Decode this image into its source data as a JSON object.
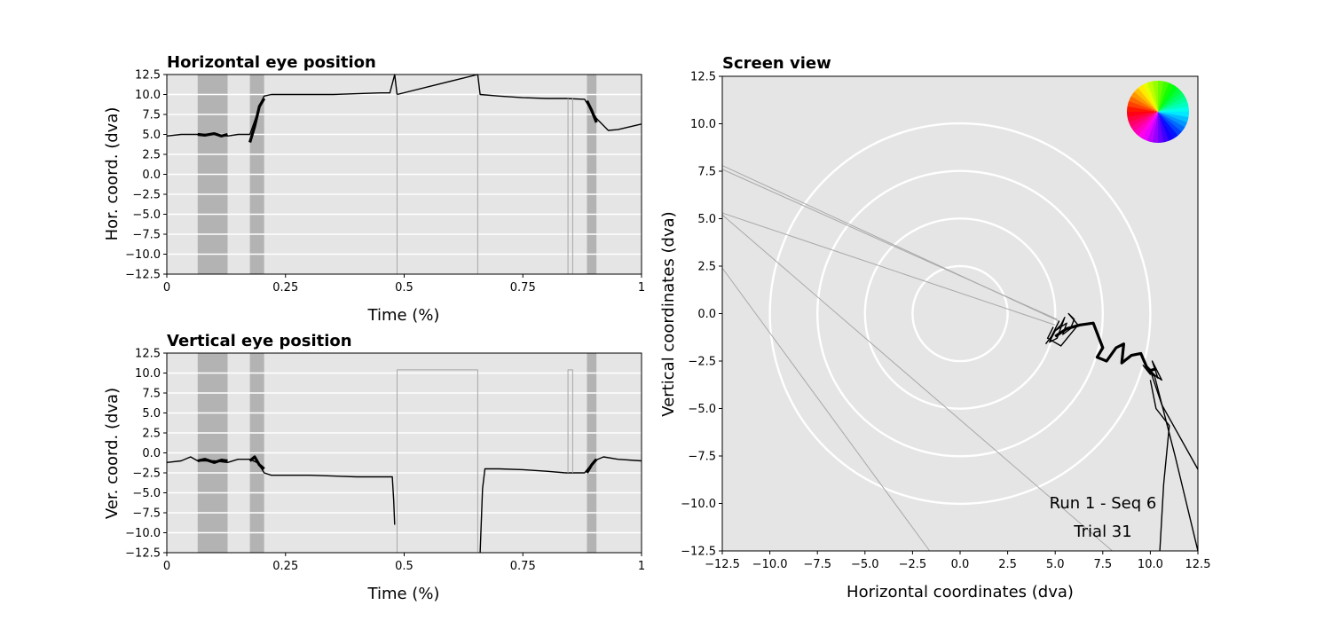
{
  "chart_data": [
    {
      "type": "line",
      "title": "Horizontal eye position",
      "xlabel": "Time (%)",
      "ylabel": "Hor. coord. (dva)",
      "xlim": [
        0,
        1
      ],
      "ylim": [
        -12.5,
        12.5
      ],
      "x_ticks": [
        0,
        0.25,
        0.5,
        0.75,
        1
      ],
      "x_tick_labels": [
        "0",
        "0.25",
        "0.5",
        "0.75",
        "1"
      ],
      "y_ticks": [
        -12.5,
        -10.0,
        -7.5,
        -5.0,
        -2.5,
        0.0,
        2.5,
        5.0,
        7.5,
        10.0,
        12.5
      ],
      "y_tick_labels": [
        "−12.5",
        "−10.0",
        "−7.5",
        "−5.0",
        "−2.5",
        "0.0",
        "2.5",
        "5.0",
        "7.5",
        "10.0",
        "12.5"
      ],
      "grid": "horizontal white",
      "shaded_intervals": [
        [
          0.065,
          0.128
        ],
        [
          0.175,
          0.205
        ],
        [
          0.885,
          0.905
        ]
      ],
      "series": [
        {
          "style": "thin-black",
          "x": [
            0,
            0.03,
            0.065,
            0.1,
            0.128,
            0.15,
            0.175,
            0.19,
            0.2,
            0.205,
            0.22,
            0.3,
            0.35,
            0.4,
            0.45,
            0.47,
            0.48,
            0.485,
            0.655,
            0.66,
            0.7,
            0.75,
            0.8,
            0.84,
            0.88,
            0.905,
            0.93,
            0.95,
            1.0
          ],
          "y": [
            4.8,
            5.0,
            5.0,
            5.0,
            4.8,
            5.0,
            5.0,
            7.5,
            9.2,
            9.8,
            10.0,
            10.0,
            10.0,
            10.1,
            10.2,
            10.2,
            12.5,
            10.0,
            12.5,
            10.0,
            9.8,
            9.6,
            9.5,
            9.5,
            9.4,
            7.0,
            5.5,
            5.6,
            6.3
          ]
        },
        {
          "style": "thick-black",
          "x": [
            0.065,
            0.08,
            0.1,
            0.115,
            0.128
          ],
          "y": [
            5.0,
            4.9,
            5.1,
            4.8,
            5.0
          ]
        },
        {
          "style": "thick-black",
          "x": [
            0.175,
            0.185,
            0.195,
            0.205
          ],
          "y": [
            4.0,
            6.0,
            8.5,
            9.5
          ]
        },
        {
          "style": "thick-black",
          "x": [
            0.885,
            0.895,
            0.905
          ],
          "y": [
            9.2,
            8.0,
            6.5
          ]
        },
        {
          "style": "thin-gray",
          "x": [
            0.485,
            0.485,
            0.655,
            0.655
          ],
          "y": [
            10.0,
            -12.5,
            -12.5,
            10.0
          ]
        },
        {
          "style": "thin-gray",
          "x": [
            0.845,
            0.845,
            0.855,
            0.855
          ],
          "y": [
            9.5,
            -12.5,
            -12.5,
            9.5
          ]
        }
      ]
    },
    {
      "type": "line",
      "title": "Vertical eye position",
      "xlabel": "Time (%)",
      "ylabel": "Ver. coord. (dva)",
      "xlim": [
        0,
        1
      ],
      "ylim": [
        -12.5,
        12.5
      ],
      "x_ticks": [
        0,
        0.25,
        0.5,
        0.75,
        1
      ],
      "x_tick_labels": [
        "0",
        "0.25",
        "0.5",
        "0.75",
        "1"
      ],
      "y_ticks": [
        -12.5,
        -10.0,
        -7.5,
        -5.0,
        -2.5,
        0.0,
        2.5,
        5.0,
        7.5,
        10.0,
        12.5
      ],
      "y_tick_labels": [
        "−12.5",
        "−10.0",
        "−7.5",
        "−5.0",
        "−2.5",
        "0.0",
        "2.5",
        "5.0",
        "7.5",
        "10.0",
        "12.5"
      ],
      "grid": "horizontal white",
      "shaded_intervals": [
        [
          0.065,
          0.128
        ],
        [
          0.175,
          0.205
        ],
        [
          0.885,
          0.905
        ]
      ],
      "series": [
        {
          "style": "thin-black",
          "x": [
            0,
            0.03,
            0.05,
            0.065,
            0.1,
            0.128,
            0.15,
            0.175,
            0.19,
            0.2,
            0.205,
            0.22,
            0.3,
            0.35,
            0.4,
            0.45,
            0.475,
            0.478,
            0.48
          ],
          "y": [
            -1.2,
            -1.0,
            -0.5,
            -1.0,
            -1.0,
            -1.2,
            -0.8,
            -0.8,
            -1.2,
            -2.0,
            -2.5,
            -2.8,
            -2.8,
            -2.9,
            -3.0,
            -3.0,
            -3.0,
            -6.0,
            -9.0
          ]
        },
        {
          "style": "thin-black",
          "x": [
            0.66,
            0.665,
            0.67,
            0.7,
            0.75,
            0.8,
            0.84,
            0.88,
            0.9,
            0.92,
            0.95,
            1.0
          ],
          "y": [
            -12.5,
            -4.5,
            -2.0,
            -2.0,
            -2.1,
            -2.3,
            -2.5,
            -2.5,
            -1.0,
            -0.5,
            -0.8,
            -1.0
          ]
        },
        {
          "style": "thick-black",
          "x": [
            0.065,
            0.08,
            0.1,
            0.115,
            0.128
          ],
          "y": [
            -1.0,
            -0.8,
            -1.2,
            -0.9,
            -1.0
          ]
        },
        {
          "style": "thick-black",
          "x": [
            0.175,
            0.185,
            0.195,
            0.205
          ],
          "y": [
            -1.0,
            -0.5,
            -1.5,
            -2.0
          ]
        },
        {
          "style": "thick-black",
          "x": [
            0.885,
            0.895,
            0.905
          ],
          "y": [
            -2.5,
            -1.5,
            -0.8
          ]
        },
        {
          "style": "thin-gray",
          "x": [
            0.485,
            0.485,
            0.655,
            0.655
          ],
          "y": [
            -12.5,
            10.4,
            10.4,
            -12.5
          ]
        },
        {
          "style": "thin-gray",
          "x": [
            0.845,
            0.845,
            0.855,
            0.855
          ],
          "y": [
            -2.5,
            10.4,
            10.4,
            -2.5
          ]
        }
      ]
    },
    {
      "type": "scatter",
      "title": "Screen view",
      "xlabel": "Horizontal coordinates (dva)",
      "ylabel": "Vertical coordinates (dva)",
      "xlim": [
        -12.5,
        12.5
      ],
      "ylim": [
        -12.5,
        12.5
      ],
      "x_ticks": [
        -12.5,
        -10.0,
        -7.5,
        -5.0,
        -2.5,
        0.0,
        2.5,
        5.0,
        7.5,
        10.0,
        12.5
      ],
      "x_tick_labels": [
        "−12.5",
        "−10.0",
        "−7.5",
        "−5.0",
        "−2.5",
        "0.0",
        "2.5",
        "5.0",
        "7.5",
        "10.0",
        "12.5"
      ],
      "y_ticks": [
        -12.5,
        -10.0,
        -7.5,
        -5.0,
        -2.5,
        0.0,
        2.5,
        5.0,
        7.5,
        10.0,
        12.5
      ],
      "y_tick_labels": [
        "−12.5",
        "−10.0",
        "−7.5",
        "−5.0",
        "−2.5",
        "0.0",
        "2.5",
        "5.0",
        "7.5",
        "10.0",
        "12.5"
      ],
      "circle_radii": [
        2.5,
        5.0,
        7.5,
        10.0
      ],
      "annotations": [
        "Run 1 - Seq 6",
        "Trial 31"
      ],
      "legend": "top-right color wheel",
      "traces": [
        {
          "style": "thin-black",
          "x": [
            4.5,
            4.8,
            5.0,
            5.2,
            4.9,
            5.3,
            5.5,
            5.1,
            4.7,
            5.0,
            5.6,
            5.4,
            5.8,
            6.0,
            5.7,
            6.2,
            5.3,
            4.6,
            4.9
          ],
          "y": [
            -1.6,
            -1.2,
            -0.8,
            -0.4,
            -1.0,
            -0.6,
            -0.2,
            -1.3,
            -1.5,
            -0.9,
            -0.5,
            -1.1,
            -0.8,
            -0.3,
            0.0,
            -0.6,
            -1.7,
            -1.3,
            -0.7
          ]
        },
        {
          "style": "thick-black",
          "x": [
            5.0,
            5.6,
            6.3,
            7.0,
            7.5,
            7.2,
            7.7,
            8.2,
            8.6,
            8.5,
            9.0,
            9.5,
            9.8,
            10.0,
            10.3
          ],
          "y": [
            -1.2,
            -0.8,
            -0.6,
            -0.5,
            -1.8,
            -2.3,
            -2.5,
            -1.8,
            -1.6,
            -2.6,
            -2.2,
            -2.1,
            -2.8,
            -3.0,
            -2.9
          ]
        },
        {
          "style": "thin-black",
          "x": [
            9.6,
            10.0,
            9.8,
            10.4,
            10.1,
            10.6,
            9.9,
            10.2
          ],
          "y": [
            -2.7,
            -3.2,
            -2.8,
            -3.4,
            -2.5,
            -3.5,
            -3.0,
            -3.3
          ]
        },
        {
          "style": "thin-black",
          "x": [
            10.0,
            10.6,
            12.5
          ],
          "y": [
            -3.0,
            -4.8,
            -8.2
          ]
        },
        {
          "style": "thin-black",
          "x": [
            10.0,
            10.3,
            11.0,
            10.7,
            10.5
          ],
          "y": [
            -3.5,
            -5.0,
            -5.9,
            -9.0,
            -12.5
          ]
        },
        {
          "style": "thin-black",
          "x": [
            10.2,
            11.3,
            12.5
          ],
          "y": [
            -3.2,
            -7.5,
            -12.5
          ]
        }
      ],
      "gray_rays": [
        {
          "x": [
            5.2,
            -12.5
          ],
          "y": [
            -0.4,
            7.8
          ]
        },
        {
          "x": [
            5.1,
            -12.5
          ],
          "y": [
            -0.3,
            7.6
          ]
        },
        {
          "x": [
            5.0,
            -12.5
          ],
          "y": [
            -0.6,
            5.3
          ]
        },
        {
          "x": [
            8.0,
            -12.5
          ],
          "y": [
            -12.5,
            5.2
          ]
        },
        {
          "x": [
            -1.6,
            -12.5
          ],
          "y": [
            -12.5,
            2.4
          ]
        }
      ]
    }
  ]
}
